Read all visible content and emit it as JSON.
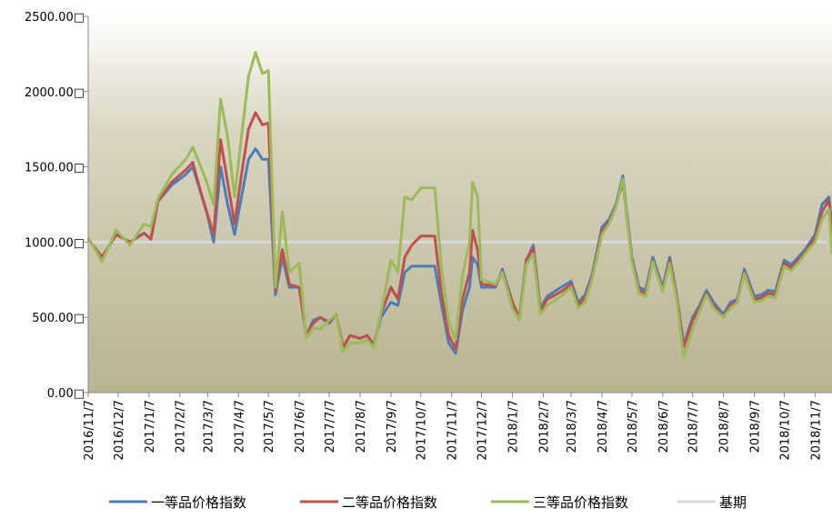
{
  "chart_data": {
    "type": "line",
    "x": [
      "2016/11/7",
      "2016/11/21",
      "2016/12/5",
      "2016/12/19",
      "2017/1/2",
      "2017/1/9",
      "2017/1/16",
      "2017/1/30",
      "2017/2/13",
      "2017/2/20",
      "2017/2/27",
      "2017/3/6",
      "2017/3/13",
      "2017/3/20",
      "2017/3/27",
      "2017/4/3",
      "2017/4/10",
      "2017/4/17",
      "2017/4/24",
      "2017/5/1",
      "2017/5/7",
      "2017/5/14",
      "2017/5/21",
      "2017/5/28",
      "2017/6/7",
      "2017/6/14",
      "2017/6/21",
      "2017/6/28",
      "2017/7/7",
      "2017/7/14",
      "2017/7/21",
      "2017/7/28",
      "2017/8/7",
      "2017/8/14",
      "2017/8/21",
      "2017/8/28",
      "2017/9/7",
      "2017/9/14",
      "2017/9/21",
      "2017/9/28",
      "2017/10/7",
      "2017/10/21",
      "2017/10/28",
      "2017/11/4",
      "2017/11/11",
      "2017/11/18",
      "2017/11/25",
      "2017/11/28",
      "2017/12/3",
      "2017/12/7",
      "2017/12/21",
      "2017/12/28",
      "2018/1/7",
      "2018/1/14",
      "2018/1/21",
      "2018/1/28",
      "2018/2/4",
      "2018/2/11",
      "2018/2/25",
      "2018/3/7",
      "2018/3/14",
      "2018/3/21",
      "2018/3/28",
      "2018/4/7",
      "2018/4/14",
      "2018/4/21",
      "2018/4/28",
      "2018/5/7",
      "2018/5/14",
      "2018/5/21",
      "2018/5/28",
      "2018/6/7",
      "2018/6/14",
      "2018/6/21",
      "2018/6/28",
      "2018/7/7",
      "2018/7/14",
      "2018/7/21",
      "2018/7/28",
      "2018/8/7",
      "2018/8/14",
      "2018/8/21",
      "2018/8/28",
      "2018/9/7",
      "2018/9/14",
      "2018/9/21",
      "2018/9/28",
      "2018/10/7",
      "2018/10/14",
      "2018/10/21",
      "2018/10/28",
      "2018/11/7",
      "2018/11/14",
      "2018/11/21",
      "2018/11/24"
    ],
    "series": [
      {
        "name": "一等品价格指数",
        "color": "#4a7ebb",
        "values": [
          1020,
          900,
          1050,
          1000,
          1060,
          1020,
          1270,
          1380,
          1450,
          1500,
          1350,
          1200,
          1000,
          1500,
          1250,
          1050,
          1300,
          1550,
          1620,
          1550,
          1550,
          650,
          900,
          700,
          700,
          380,
          480,
          500,
          460,
          520,
          300,
          380,
          360,
          380,
          320,
          500,
          600,
          580,
          800,
          840,
          840,
          840,
          580,
          330,
          260,
          550,
          700,
          900,
          850,
          700,
          700,
          820,
          600,
          500,
          880,
          980,
          560,
          640,
          700,
          740,
          600,
          650,
          780,
          1100,
          1150,
          1250,
          1440,
          900,
          700,
          680,
          900,
          700,
          900,
          650,
          320,
          500,
          580,
          680,
          600,
          520,
          600,
          620,
          820,
          640,
          650,
          680,
          670,
          880,
          850,
          900,
          950,
          1050,
          1250,
          1300,
          1100
        ]
      },
      {
        "name": "二等品价格指数",
        "color": "#c0504d",
        "values": [
          1020,
          900,
          1050,
          1000,
          1060,
          1020,
          1270,
          1400,
          1480,
          1530,
          1360,
          1200,
          1050,
          1680,
          1400,
          1120,
          1450,
          1750,
          1860,
          1780,
          1790,
          680,
          950,
          720,
          700,
          380,
          460,
          500,
          470,
          520,
          300,
          380,
          360,
          380,
          320,
          520,
          700,
          620,
          900,
          980,
          1040,
          1040,
          650,
          380,
          290,
          620,
          800,
          1080,
          950,
          720,
          710,
          800,
          600,
          490,
          880,
          960,
          540,
          620,
          670,
          720,
          580,
          630,
          760,
          1080,
          1130,
          1240,
          1400,
          880,
          680,
          660,
          880,
          680,
          880,
          640,
          300,
          480,
          560,
          660,
          580,
          500,
          580,
          610,
          800,
          620,
          630,
          660,
          650,
          860,
          830,
          880,
          930,
          1030,
          1200,
          1280,
          1060
        ]
      },
      {
        "name": "三等品价格指数",
        "color": "#9bbb59",
        "values": [
          1030,
          870,
          1080,
          980,
          1120,
          1100,
          1290,
          1450,
          1550,
          1630,
          1520,
          1400,
          1250,
          1950,
          1700,
          1300,
          1700,
          2100,
          2260,
          2120,
          2140,
          700,
          1200,
          800,
          860,
          360,
          430,
          420,
          480,
          520,
          270,
          330,
          330,
          350,
          300,
          530,
          880,
          800,
          1300,
          1280,
          1360,
          1360,
          820,
          470,
          350,
          780,
          1000,
          1400,
          1300,
          750,
          720,
          800,
          560,
          480,
          850,
          920,
          520,
          580,
          640,
          700,
          560,
          600,
          750,
          1050,
          1120,
          1230,
          1420,
          870,
          660,
          640,
          870,
          670,
          860,
          620,
          230,
          420,
          540,
          650,
          560,
          500,
          560,
          600,
          790,
          600,
          610,
          640,
          630,
          840,
          810,
          860,
          920,
          1000,
          1150,
          1220,
          920
        ]
      }
    ],
    "baseline": {
      "name": "基期",
      "color": "#d9d9d9",
      "value": 1000
    },
    "xlim": [
      "2016/11/7",
      "2018/11/24"
    ],
    "xticks": [
      "2016/11/7",
      "2016/12/7",
      "2017/1/7",
      "2017/2/7",
      "2017/3/7",
      "2017/4/7",
      "2017/5/7",
      "2017/6/7",
      "2017/7/7",
      "2017/8/7",
      "2017/9/7",
      "2017/10/7",
      "2017/11/7",
      "2017/12/7",
      "2018/1/7",
      "2018/2/7",
      "2018/3/7",
      "2018/4/7",
      "2018/5/7",
      "2018/6/7",
      "2018/7/7",
      "2018/8/7",
      "2018/9/7",
      "2018/10/7",
      "2018/11/7"
    ],
    "ylim": [
      0,
      2500
    ],
    "yticks": [
      {
        "value": 0,
        "label": "0.00□"
      },
      {
        "value": 500,
        "label": "500.00□"
      },
      {
        "value": 1000,
        "label": "1000.00□"
      },
      {
        "value": 1500,
        "label": "1500.00□"
      },
      {
        "value": 2000,
        "label": "2000.00□"
      },
      {
        "value": 2500,
        "label": "2500.00□"
      }
    ]
  }
}
